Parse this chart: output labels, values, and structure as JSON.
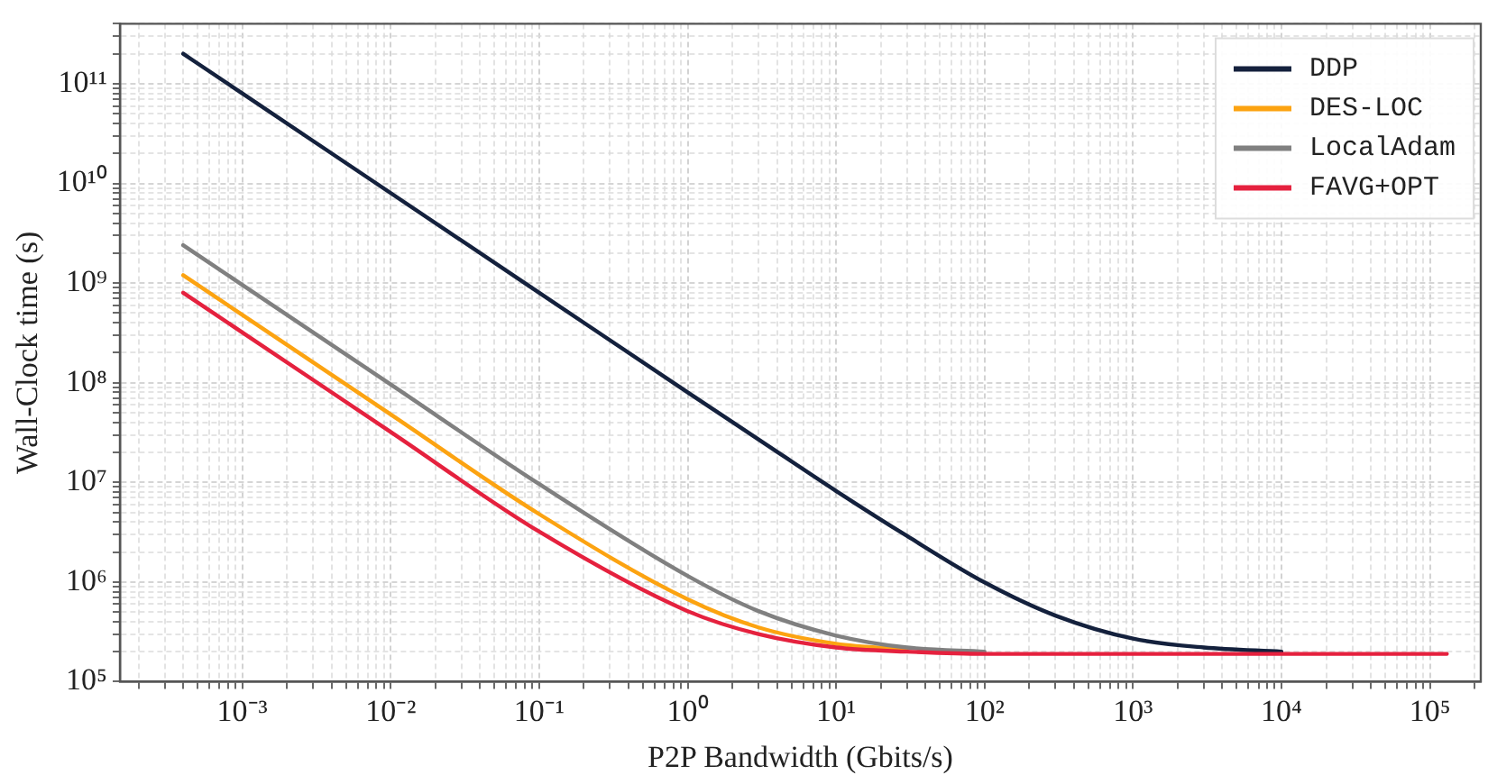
{
  "chart_data": {
    "type": "line",
    "xlabel": "P2P Bandwidth (Gbits/s)",
    "ylabel": "Wall-Clock time (s)",
    "log": "xy",
    "grid": true,
    "legend": "top right",
    "marker": "none",
    "line_style": "solid",
    "xlim": [
      0.00015,
      220000
    ],
    "ylim": [
      100000,
      400000000000
    ],
    "xticks": [
      {
        "value": 0.0002,
        "label": null
      },
      {
        "value": 0.0003,
        "label": null
      },
      {
        "value": 0.0004,
        "label": null
      },
      {
        "value": 0.0005,
        "label": null
      },
      {
        "value": 0.0006,
        "label": null
      },
      {
        "value": 0.0007,
        "label": null
      },
      {
        "value": 0.0008,
        "label": null
      },
      {
        "value": 0.0009,
        "label": null
      },
      {
        "value": 0.001,
        "label": "10⁻³"
      },
      {
        "value": 0.002,
        "label": null
      },
      {
        "value": 0.003,
        "label": null
      },
      {
        "value": 0.004,
        "label": null
      },
      {
        "value": 0.005,
        "label": null
      },
      {
        "value": 0.006,
        "label": null
      },
      {
        "value": 0.007,
        "label": null
      },
      {
        "value": 0.008,
        "label": null
      },
      {
        "value": 0.009,
        "label": null
      },
      {
        "value": 0.01,
        "label": "10⁻²"
      },
      {
        "value": 0.02,
        "label": null
      },
      {
        "value": 0.03,
        "label": null
      },
      {
        "value": 0.04,
        "label": null
      },
      {
        "value": 0.05,
        "label": null
      },
      {
        "value": 0.06,
        "label": null
      },
      {
        "value": 0.07,
        "label": null
      },
      {
        "value": 0.08,
        "label": null
      },
      {
        "value": 0.09,
        "label": null
      },
      {
        "value": 0.1,
        "label": "10⁻¹"
      },
      {
        "value": 0.2,
        "label": null
      },
      {
        "value": 0.3,
        "label": null
      },
      {
        "value": 0.4,
        "label": null
      },
      {
        "value": 0.5,
        "label": null
      },
      {
        "value": 0.6,
        "label": null
      },
      {
        "value": 0.7,
        "label": null
      },
      {
        "value": 0.8,
        "label": null
      },
      {
        "value": 0.9,
        "label": null
      },
      {
        "value": 1,
        "label": "10⁰"
      },
      {
        "value": 2,
        "label": null
      },
      {
        "value": 3,
        "label": null
      },
      {
        "value": 4,
        "label": null
      },
      {
        "value": 5,
        "label": null
      },
      {
        "value": 6,
        "label": null
      },
      {
        "value": 7,
        "label": null
      },
      {
        "value": 8,
        "label": null
      },
      {
        "value": 9,
        "label": null
      },
      {
        "value": 10,
        "label": "10¹"
      },
      {
        "value": 20,
        "label": null
      },
      {
        "value": 30,
        "label": null
      },
      {
        "value": 40,
        "label": null
      },
      {
        "value": 50,
        "label": null
      },
      {
        "value": 60,
        "label": null
      },
      {
        "value": 70,
        "label": null
      },
      {
        "value": 80,
        "label": null
      },
      {
        "value": 90,
        "label": null
      },
      {
        "value": 100,
        "label": "10²"
      },
      {
        "value": 200,
        "label": null
      },
      {
        "value": 300,
        "label": null
      },
      {
        "value": 400,
        "label": null
      },
      {
        "value": 500,
        "label": null
      },
      {
        "value": 600,
        "label": null
      },
      {
        "value": 700,
        "label": null
      },
      {
        "value": 800,
        "label": null
      },
      {
        "value": 900,
        "label": null
      },
      {
        "value": 1000,
        "label": "10³"
      },
      {
        "value": 2000,
        "label": null
      },
      {
        "value": 3000,
        "label": null
      },
      {
        "value": 4000,
        "label": null
      },
      {
        "value": 5000,
        "label": null
      },
      {
        "value": 6000,
        "label": null
      },
      {
        "value": 7000,
        "label": null
      },
      {
        "value": 8000,
        "label": null
      },
      {
        "value": 9000,
        "label": null
      },
      {
        "value": 10000,
        "label": "10⁴"
      },
      {
        "value": 20000,
        "label": null
      },
      {
        "value": 30000,
        "label": null
      },
      {
        "value": 40000,
        "label": null
      },
      {
        "value": 50000,
        "label": null
      },
      {
        "value": 60000,
        "label": null
      },
      {
        "value": 70000,
        "label": null
      },
      {
        "value": 80000,
        "label": null
      },
      {
        "value": 90000,
        "label": null
      },
      {
        "value": 100000,
        "label": "10⁵"
      },
      {
        "value": 200000,
        "label": null
      }
    ],
    "yticks": [
      {
        "value": 100000,
        "label": "10⁵"
      },
      {
        "value": 200000,
        "label": null
      },
      {
        "value": 300000,
        "label": null
      },
      {
        "value": 400000,
        "label": null
      },
      {
        "value": 500000,
        "label": null
      },
      {
        "value": 600000,
        "label": null
      },
      {
        "value": 700000,
        "label": null
      },
      {
        "value": 800000,
        "label": null
      },
      {
        "value": 900000,
        "label": null
      },
      {
        "value": 1000000,
        "label": "10⁶"
      },
      {
        "value": 2000000,
        "label": null
      },
      {
        "value": 3000000,
        "label": null
      },
      {
        "value": 4000000,
        "label": null
      },
      {
        "value": 5000000,
        "label": null
      },
      {
        "value": 6000000,
        "label": null
      },
      {
        "value": 7000000,
        "label": null
      },
      {
        "value": 8000000,
        "label": null
      },
      {
        "value": 9000000,
        "label": null
      },
      {
        "value": 10000000,
        "label": "10⁷"
      },
      {
        "value": 20000000,
        "label": null
      },
      {
        "value": 30000000,
        "label": null
      },
      {
        "value": 40000000,
        "label": null
      },
      {
        "value": 50000000,
        "label": null
      },
      {
        "value": 60000000,
        "label": null
      },
      {
        "value": 70000000,
        "label": null
      },
      {
        "value": 80000000,
        "label": null
      },
      {
        "value": 90000000,
        "label": null
      },
      {
        "value": 100000000,
        "label": "10⁸"
      },
      {
        "value": 200000000,
        "label": null
      },
      {
        "value": 300000000,
        "label": null
      },
      {
        "value": 400000000,
        "label": null
      },
      {
        "value": 500000000,
        "label": null
      },
      {
        "value": 600000000,
        "label": null
      },
      {
        "value": 700000000,
        "label": null
      },
      {
        "value": 800000000,
        "label": null
      },
      {
        "value": 900000000,
        "label": null
      },
      {
        "value": 1000000000,
        "label": "10⁹"
      },
      {
        "value": 2000000000,
        "label": null
      },
      {
        "value": 3000000000,
        "label": null
      },
      {
        "value": 4000000000,
        "label": null
      },
      {
        "value": 5000000000,
        "label": null
      },
      {
        "value": 6000000000,
        "label": null
      },
      {
        "value": 7000000000,
        "label": null
      },
      {
        "value": 8000000000,
        "label": null
      },
      {
        "value": 9000000000,
        "label": null
      },
      {
        "value": 10000000000,
        "label": "10¹⁰"
      },
      {
        "value": 20000000000,
        "label": null
      },
      {
        "value": 30000000000,
        "label": null
      },
      {
        "value": 40000000000,
        "label": null
      },
      {
        "value": 50000000000,
        "label": null
      },
      {
        "value": 60000000000,
        "label": null
      },
      {
        "value": 70000000000,
        "label": null
      },
      {
        "value": 80000000000,
        "label": null
      },
      {
        "value": 90000000000,
        "label": null
      },
      {
        "value": 100000000000,
        "label": "10¹¹"
      },
      {
        "value": 200000000000,
        "label": null
      },
      {
        "value": 300000000000,
        "label": null
      },
      {
        "value": 400000000000,
        "label": null
      }
    ],
    "x": [
      0.0004,
      0.001,
      0.01,
      0.1,
      1,
      3,
      10,
      30,
      100,
      300,
      1000,
      3000,
      10000,
      100000,
      130000
    ],
    "series": [
      {
        "name": "DDP",
        "color": "#14213d",
        "values": [
          200000000000,
          80000000000,
          8000000000,
          800000000,
          80000000,
          27000000,
          8200000,
          2900000,
          990000,
          460000,
          270000,
          220000,
          200000,
          null,
          null
        ]
      },
      {
        "name": "DES-LOC",
        "color": "#fca311",
        "values": [
          1200000000,
          480000000,
          48000000,
          4800000,
          670000,
          350000,
          240000,
          210000,
          null,
          null,
          null,
          null,
          null,
          null,
          null
        ]
      },
      {
        "name": "LocalAdam",
        "color": "#808080",
        "values": [
          2400000000,
          960000000,
          96000000,
          9600000,
          1150000,
          510000,
          290000,
          220000,
          200000,
          null,
          null,
          null,
          null,
          null,
          null
        ]
      },
      {
        "name": "FAVG+OPT",
        "color": "#e5213e",
        "values": [
          800000000,
          320000000,
          32000000,
          3200000,
          510000,
          300000,
          220000,
          200000,
          190000,
          190000,
          190000,
          190000,
          190000,
          190000,
          190000
        ]
      }
    ]
  }
}
